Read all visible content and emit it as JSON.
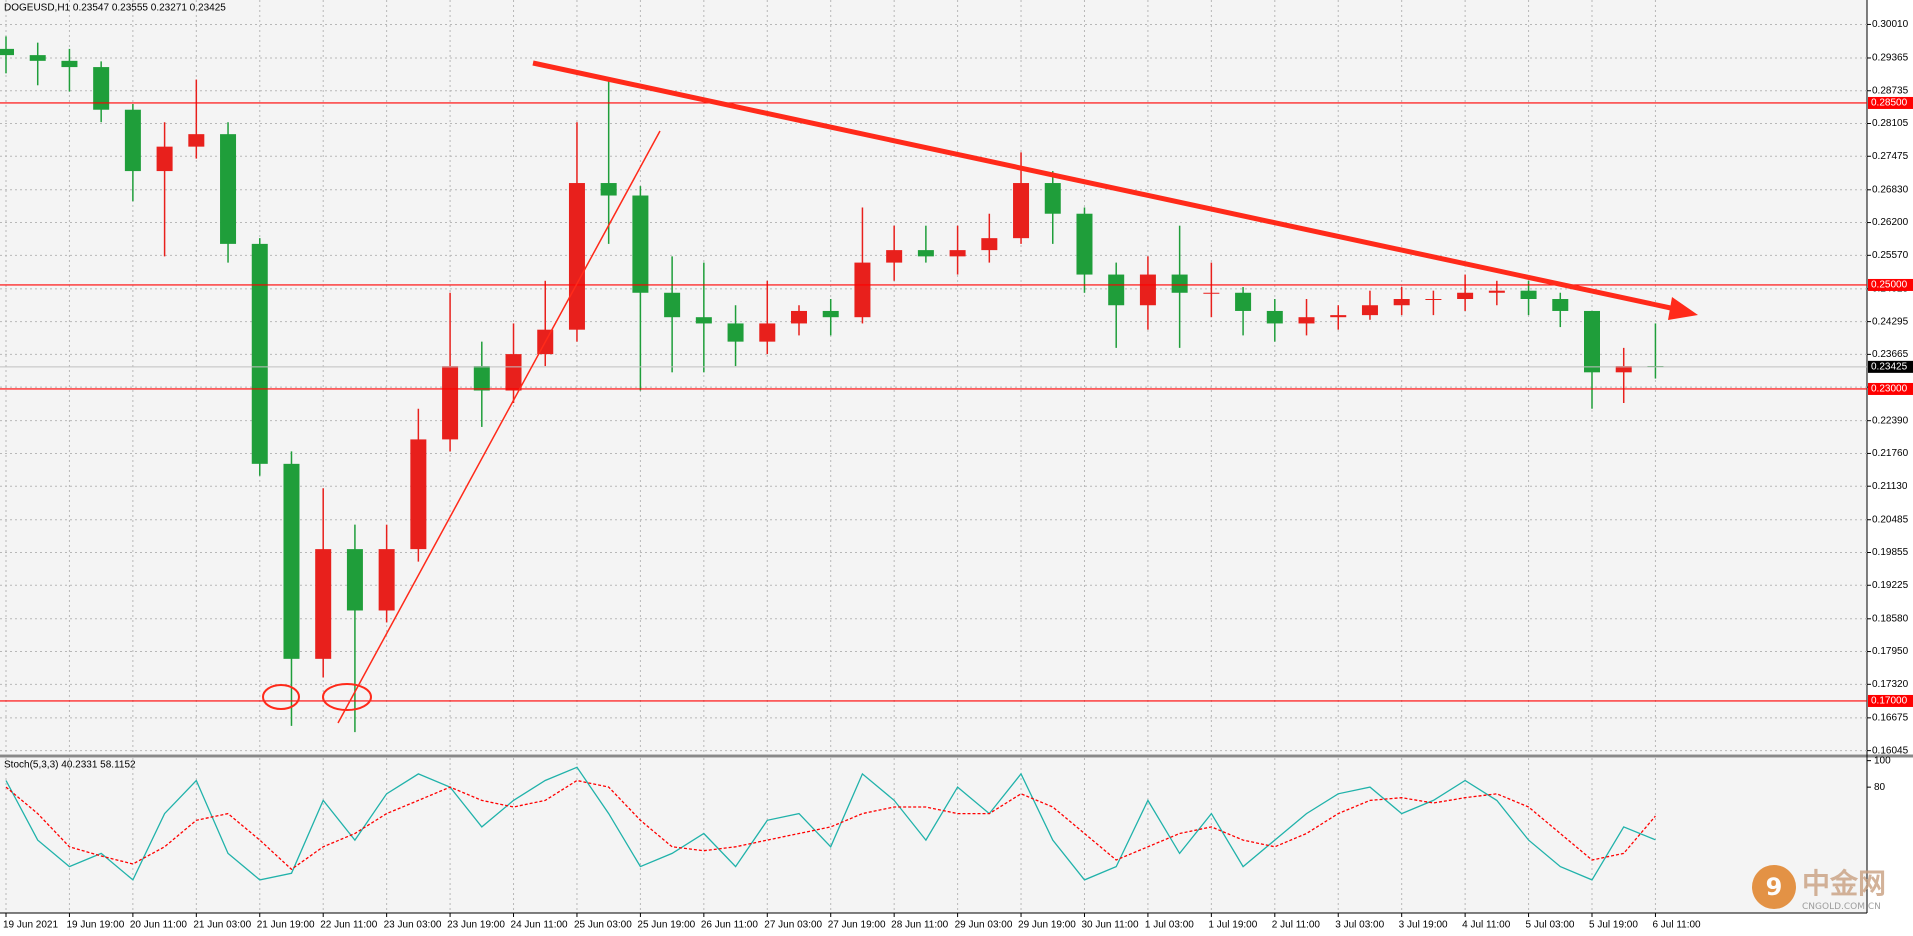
{
  "chart_data": [
    {
      "type": "candlestick",
      "title": "DOGEUSD,H1  0.23547 0.23555 0.23271 0.23425",
      "categories": [
        "19 Jun 2021",
        null,
        "19 Jun 19:00",
        null,
        "20 Jun 11:00",
        null,
        "21 Jun 03:00",
        null,
        "21 Jun 19:00",
        null,
        "22 Jun 11:00",
        null,
        "23 Jun 03:00",
        null,
        "23 Jun 19:00",
        null,
        "24 Jun 11:00",
        null,
        "25 Jun 03:00",
        null,
        "25 Jun 19:00",
        null,
        "26 Jun 11:00",
        null,
        "27 Jun 03:00",
        null,
        "27 Jun 19:00",
        null,
        "28 Jun 11:00",
        null,
        "29 Jun 03:00",
        null,
        "29 Jun 19:00",
        null,
        "30 Jun 11:00",
        null,
        "1 Jul 03:00",
        null,
        "1 Jul 19:00",
        null,
        "2 Jul 11:00",
        null,
        "3 Jul 03:00",
        null,
        "3 Jul 19:00",
        null,
        "4 Jul 11:00",
        null,
        "5 Jul 03:00",
        null,
        "5 Jul 19:00",
        null,
        "6 Jul 11:00"
      ],
      "open": [
        0.2954,
        0.2942,
        0.2931,
        0.2919,
        0.2837,
        0.2719,
        0.2766,
        0.279,
        0.2579,
        0.2156,
        0.1781,
        0.1992,
        0.1874,
        0.1992,
        0.2203,
        0.2344,
        0.2297,
        0.2367,
        0.2414,
        0.2696,
        0.2672,
        0.2485,
        0.2438,
        0.2426,
        0.2391,
        0.2426,
        0.245,
        0.2438,
        0.2543,
        0.2567,
        0.2555,
        0.2567,
        0.259,
        0.2696,
        0.2637,
        0.252,
        0.2461,
        0.252,
        0.2485,
        0.2485,
        0.245,
        0.2426,
        0.2438,
        0.2442,
        0.2461,
        0.2473,
        0.2473,
        0.2485,
        0.2489,
        0.2473,
        0.245,
        0.2332,
        0.2344
      ],
      "high": [
        0.2978,
        0.2966,
        0.2954,
        0.293,
        0.2848,
        0.2813,
        0.2895,
        0.2813,
        0.259,
        0.218,
        0.2109,
        0.2039,
        0.2039,
        0.2262,
        0.2485,
        0.2391,
        0.2426,
        0.2508,
        0.2813,
        0.2895,
        0.269,
        0.2555,
        0.2543,
        0.2461,
        0.2508,
        0.2461,
        0.2473,
        0.2649,
        0.2614,
        0.2614,
        0.2614,
        0.2637,
        0.2755,
        0.2719,
        0.2649,
        0.2543,
        0.2555,
        0.2614,
        0.2543,
        0.2496,
        0.2473,
        0.2473,
        0.2461,
        0.2489,
        0.2496,
        0.2489,
        0.252,
        0.2508,
        0.2508,
        0.2485,
        0.245,
        0.2379,
        0.2426
      ],
      "low": [
        0.2907,
        0.2884,
        0.2872,
        0.2813,
        0.2661,
        0.2555,
        0.2743,
        0.2543,
        0.2133,
        0.1652,
        0.1745,
        0.164,
        0.1851,
        0.1968,
        0.218,
        0.2227,
        0.2273,
        0.2344,
        0.2391,
        0.2579,
        0.2297,
        0.2332,
        0.2332,
        0.2344,
        0.2367,
        0.2403,
        0.2403,
        0.2426,
        0.2508,
        0.2543,
        0.252,
        0.2543,
        0.2579,
        0.2579,
        0.2485,
        0.2379,
        0.2414,
        0.2379,
        0.2438,
        0.2403,
        0.2391,
        0.2403,
        0.2414,
        0.2433,
        0.2442,
        0.2442,
        0.245,
        0.2461,
        0.2442,
        0.2419,
        0.2262,
        0.2273,
        0.232
      ],
      "close": [
        0.2942,
        0.2931,
        0.2919,
        0.2837,
        0.2719,
        0.2766,
        0.279,
        0.2579,
        0.2156,
        0.1781,
        0.1992,
        0.1874,
        0.1992,
        0.2203,
        0.2344,
        0.2297,
        0.2367,
        0.2414,
        0.2696,
        0.2672,
        0.2485,
        0.2438,
        0.2426,
        0.2391,
        0.2426,
        0.245,
        0.2438,
        0.2543,
        0.2567,
        0.2555,
        0.2567,
        0.259,
        0.2696,
        0.2637,
        0.252,
        0.2461,
        0.252,
        0.2485,
        0.2485,
        0.245,
        0.2426,
        0.2438,
        0.2442,
        0.2461,
        0.2473,
        0.2473,
        0.2485,
        0.2489,
        0.2473,
        0.245,
        0.2332,
        0.2344,
        0.23425
      ],
      "up_color": "#e8201c",
      "down_color": "#1f9e3a",
      "ylim": [
        0.1598,
        0.3048
      ],
      "yticks": [
        {
          "value": 0.3001,
          "label": "0.30010"
        },
        {
          "value": 0.29365,
          "label": "0.29365"
        },
        {
          "value": 0.28735,
          "label": "0.28735"
        },
        {
          "value": 0.28105,
          "label": "0.28105"
        },
        {
          "value": 0.27475,
          "label": "0.27475"
        },
        {
          "value": 0.2683,
          "label": "0.26830"
        },
        {
          "value": 0.262,
          "label": "0.26200"
        },
        {
          "value": 0.2557,
          "label": "0.25570"
        },
        {
          "value": 0.24925,
          "label": "0.24925"
        },
        {
          "value": 0.24295,
          "label": "0.24295"
        },
        {
          "value": 0.23665,
          "label": "0.23665"
        },
        {
          "value": 0.23035,
          "label": "0.23035"
        },
        {
          "value": 0.2239,
          "label": "0.22390"
        },
        {
          "value": 0.2176,
          "label": "0.21760"
        },
        {
          "value": 0.2113,
          "label": "0.21130"
        },
        {
          "value": 0.20485,
          "label": "0.20485"
        },
        {
          "value": 0.19855,
          "label": "0.19855"
        },
        {
          "value": 0.19225,
          "label": "0.19225"
        },
        {
          "value": 0.1858,
          "label": "0.18580"
        },
        {
          "value": 0.1795,
          "label": "0.17950"
        },
        {
          "value": 0.1732,
          "label": "0.17320"
        },
        {
          "value": 0.16675,
          "label": "0.16675"
        },
        {
          "value": 0.16045,
          "label": "0.16045"
        }
      ],
      "levels": [
        {
          "value": 0.285,
          "label": "0.28500"
        },
        {
          "value": 0.25,
          "label": "0.25000"
        },
        {
          "value": 0.23,
          "label": "0.23000"
        },
        {
          "value": 0.17,
          "label": "0.17000"
        }
      ],
      "level_color": "#ff0000",
      "last_price": {
        "value": 0.23425,
        "label": "0.23425"
      },
      "grid": true
    },
    {
      "type": "line",
      "title": "Stoch(5,3,3) 40.2331 58.1152",
      "series": [
        {
          "color": "#20b2aa",
          "dashed": false,
          "values": [
            85,
            40,
            20,
            30,
            10,
            60,
            85,
            30,
            10,
            15,
            70,
            40,
            75,
            90,
            80,
            50,
            70,
            85,
            95,
            60,
            20,
            30,
            45,
            20,
            55,
            60,
            35,
            90,
            70,
            40,
            80,
            60,
            90,
            40,
            10,
            20,
            70,
            30,
            60,
            20,
            40,
            60,
            75,
            80,
            60,
            70,
            85,
            70,
            40,
            20,
            10,
            50,
            40.2331
          ]
        },
        {
          "color": "#ff0000",
          "dashed": true,
          "values": [
            80,
            60,
            35,
            28,
            22,
            35,
            55,
            60,
            40,
            18,
            35,
            45,
            60,
            70,
            80,
            70,
            65,
            70,
            85,
            80,
            55,
            35,
            32,
            35,
            40,
            45,
            50,
            60,
            65,
            65,
            60,
            60,
            75,
            65,
            45,
            25,
            35,
            45,
            50,
            40,
            35,
            45,
            60,
            70,
            72,
            68,
            72,
            75,
            65,
            45,
            25,
            30,
            58.1152
          ]
        }
      ],
      "ylim": [
        -15,
        102
      ],
      "yticks": [
        100,
        80
      ]
    }
  ],
  "watermark": {
    "title": "中金网",
    "subtitle": "CNGOLD.COM.CN"
  }
}
